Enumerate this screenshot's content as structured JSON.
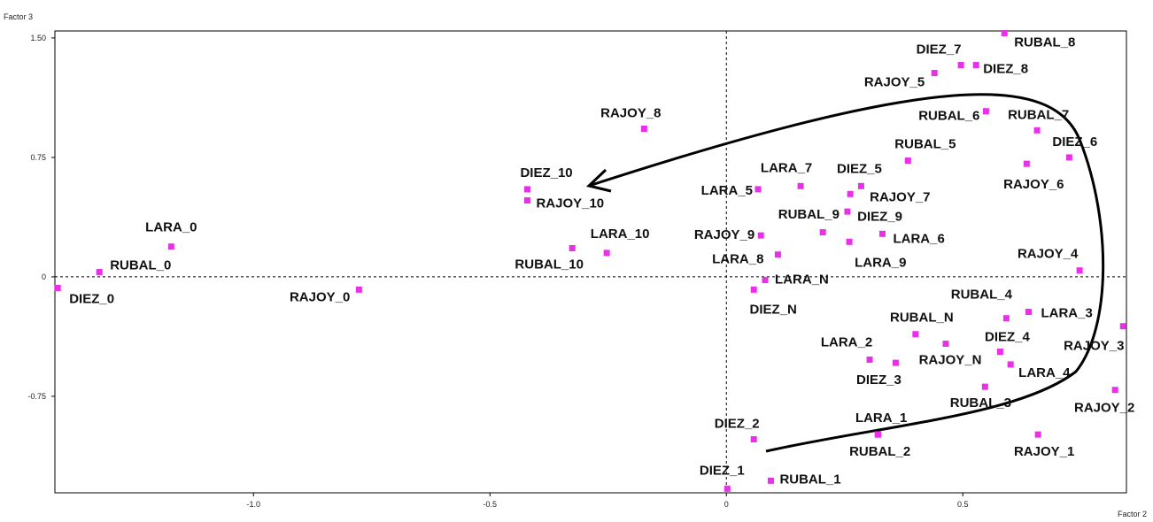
{
  "chart_data": {
    "type": "scatter",
    "ylabel": "Factor 3",
    "xlabel": "Factor 2",
    "xlim": [
      -1.42,
      0.846
    ],
    "ylim": [
      -1.356,
      1.544
    ],
    "xticks": [
      {
        "value": -1,
        "label": "-1.0"
      },
      {
        "value": -0.5,
        "label": "-0.5"
      },
      0,
      {
        "value": 0.5,
        "label": "0.5"
      }
    ],
    "yticks": [
      {
        "value": 1.5,
        "label": "1.50"
      },
      0.75,
      0,
      -0.75
    ],
    "color": "#e830e8",
    "labels": [
      "LARA_0",
      "RUBAL_0",
      "DIEZ_0",
      "RAJOY_0",
      "RAJOY_8",
      "DIEZ_10",
      "RAJOY_10",
      "LARA_10",
      "RUBAL_10",
      "LARA_5",
      "LARA_7",
      "DIEZ_5",
      "RAJOY_7",
      "RUBAL_9",
      "RAJOY_9",
      "DIEZ_9",
      "LARA_6",
      "LARA_9",
      "LARA_8",
      "LARA_N",
      "DIEZ_N",
      "RUBAL_5",
      "RUBAL_6",
      "RUBAL_7",
      "DIEZ_6",
      "RAJOY_6",
      "RAJOY_5",
      "DIEZ_7",
      "DIEZ_8",
      "RUBAL_8",
      "RAJOY_4",
      "RUBAL_4",
      "LARA_3",
      "RAJOY_3",
      "RUBAL_N",
      "DIEZ_4",
      "LARA_2",
      "DIEZ_3",
      "RAJOY_N",
      "LARA_4",
      "RUBAL_3",
      "RAJOY_2",
      "LARA_1",
      "RUBAL_2",
      "RAJOY_1",
      "DIEZ_2",
      "DIEZ_1",
      "RUBAL_1"
    ],
    "x": [
      -1.174,
      -1.326,
      -1.414,
      -0.777,
      -0.174,
      -0.421,
      -0.421,
      -0.253,
      -0.326,
      0.067,
      0.157,
      0.285,
      0.262,
      0.256,
      0.073,
      0.204,
      0.33,
      0.26,
      0.109,
      0.082,
      0.058,
      0.384,
      0.549,
      0.657,
      0.725,
      0.635,
      0.44,
      0.496,
      0.528,
      0.588,
      0.747,
      0.592,
      0.639,
      0.839,
      0.4,
      0.579,
      0.303,
      0.358,
      0.464,
      0.601,
      0.547,
      0.822,
      0.32,
      0.321,
      0.659,
      0.058,
      0.002,
      0.094
    ],
    "values": [
      0.19,
      0.03,
      -0.07,
      -0.08,
      0.93,
      0.55,
      0.48,
      0.15,
      0.18,
      0.55,
      0.57,
      0.57,
      0.52,
      0.41,
      0.26,
      0.28,
      0.27,
      0.22,
      0.14,
      -0.02,
      -0.08,
      0.73,
      1.04,
      0.92,
      0.75,
      0.71,
      1.28,
      1.33,
      1.33,
      1.53,
      0.04,
      -0.26,
      -0.22,
      -0.31,
      -0.36,
      -0.47,
      -0.52,
      -0.54,
      -0.42,
      -0.55,
      -0.69,
      -0.71,
      -0.99,
      -0.99,
      -0.99,
      -1.02,
      -1.33,
      -1.28
    ]
  }
}
